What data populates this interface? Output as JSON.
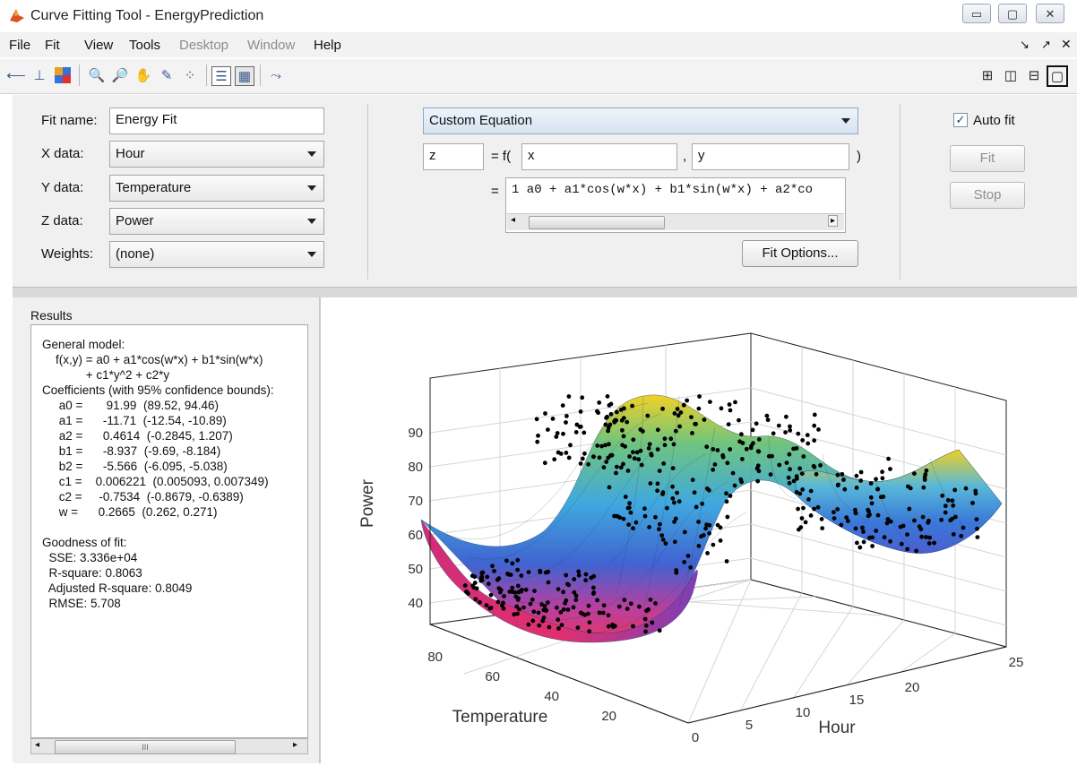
{
  "window": {
    "title": "Curve Fitting Tool - EnergyPrediction",
    "buttons": [
      "minimize",
      "maximize",
      "close"
    ]
  },
  "menu": {
    "items": [
      {
        "label": "File",
        "enabled": true
      },
      {
        "label": "Fit",
        "enabled": true
      },
      {
        "label": "View",
        "enabled": true
      },
      {
        "label": "Tools",
        "enabled": true
      },
      {
        "label": "Desktop",
        "enabled": false
      },
      {
        "label": "Window",
        "enabled": false
      },
      {
        "label": "Help",
        "enabled": true
      }
    ],
    "right_icons": [
      "dock-arrow-icon",
      "undock-arrow-icon",
      "close-x-icon"
    ]
  },
  "toolbar": {
    "tools": [
      "pan-arrow-icon",
      "data-cursor-icon",
      "colormap-icon",
      "zoom-in-icon",
      "zoom-out-icon",
      "hand-pan-icon",
      "data-tip-icon",
      "exclude-points-icon",
      "legend-icon",
      "grid-icon",
      "residuals-plot-icon"
    ],
    "layout_icons": [
      "layout-grid-icon",
      "layout-columns-icon",
      "layout-rows-icon",
      "layout-single-icon"
    ]
  },
  "fit": {
    "fit_name_label": "Fit name:",
    "fit_name_value": "Energy Fit",
    "x_label": "X data:",
    "x_value": "Hour",
    "y_label": "Y data:",
    "y_value": "Temperature",
    "z_label": "Z data:",
    "z_value": "Power",
    "weights_label": "Weights:",
    "weights_value": "(none)",
    "equation_type": "Custom Equation",
    "dep_var": "z",
    "eq_fx_prefix": "= f(",
    "indep_var1": "x",
    "comma": ",",
    "indep_var2": "y",
    "close_paren": ")",
    "eq_equals": "=",
    "equation_text": "1 a0 + a1*cos(w*x) + b1*sin(w*x) + a2*co",
    "fit_options_label": "Fit Options...",
    "auto_fit_label": "Auto fit",
    "auto_fit_checked": true,
    "fit_button_label": "Fit",
    "stop_button_label": "Stop"
  },
  "results": {
    "heading": "Results",
    "lines": [
      "General model:",
      "    f(x,y) = a0 + a1*cos(w*x) + b1*sin(w*x)",
      "             + c1*y^2 + c2*y",
      "Coefficients (with 95% confidence bounds):",
      "     a0 =       91.99  (89.52, 94.46)",
      "     a1 =      -11.71  (-12.54, -10.89)",
      "     a2 =      0.4614  (-0.2845, 1.207)",
      "     b1 =      -8.937  (-9.69, -8.184)",
      "     b2 =      -5.566  (-6.095, -5.038)",
      "     c1 =    0.006221  (0.005093, 0.007349)",
      "     c2 =     -0.7534  (-0.8679, -0.6389)",
      "     w =      0.2665  (0.262, 0.271)",
      "",
      "Goodness of fit:",
      "  SSE: 3.336e+04",
      "  R-square: 0.8063",
      "  Adjusted R-square: 0.8049",
      "  RMSE: 5.708"
    ],
    "scroll_thumb_label": "III"
  },
  "plot": {
    "zlabel": "Power",
    "ylabel": "Temperature",
    "xlabel": "Hour",
    "z_ticks": [
      "90",
      "80",
      "70",
      "60",
      "50",
      "40"
    ],
    "temp_ticks": [
      "80",
      "60",
      "40",
      "20"
    ],
    "hour_ticks": [
      "0",
      "5",
      "10",
      "15",
      "20",
      "25"
    ]
  },
  "colors": {
    "panel_bg": "#f0f0f0",
    "surface_colormap": [
      "#e03070",
      "#3a6fd8",
      "#46b0e0",
      "#f0d020"
    ],
    "scatter_points": "#000000"
  }
}
